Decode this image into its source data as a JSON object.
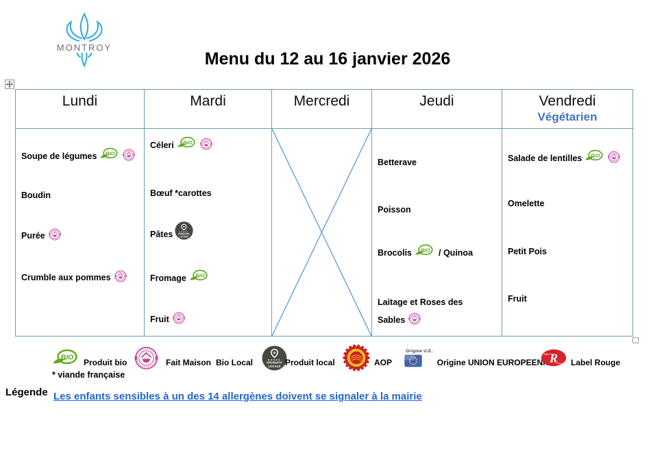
{
  "logo": {
    "text": "MONTROY"
  },
  "title": "Menu du 12 au 16 janvier 2026",
  "table": {
    "days": [
      {
        "label": "Lundi",
        "sublabel": "",
        "crossed": false,
        "items": [
          {
            "text": "Soupe de légumes",
            "icons": [
              "bio",
              "fait-maison"
            ],
            "suffix": ""
          },
          {
            "text": "Boudin",
            "icons": [],
            "suffix": ""
          },
          {
            "text": "Purée",
            "icons": [
              "fait-maison"
            ],
            "suffix": ""
          },
          {
            "text": "Crumble aux pommes",
            "icons": [
              "fait-maison"
            ],
            "suffix": ""
          }
        ]
      },
      {
        "label": "Mardi",
        "sublabel": "",
        "crossed": false,
        "items": [
          {
            "text": "Céleri",
            "icons": [
              "bio",
              "fait-maison"
            ],
            "suffix": ""
          },
          {
            "text": "Bœuf *carottes",
            "icons": [],
            "suffix": ""
          },
          {
            "text": "Pâtes",
            "icons": [
              "produit-local"
            ],
            "suffix": ""
          },
          {
            "text": "Fromage",
            "icons": [
              "bio"
            ],
            "suffix": ""
          },
          {
            "text": "Fruit",
            "icons": [
              "fait-maison"
            ],
            "suffix": ""
          }
        ]
      },
      {
        "label": "Mercredi",
        "sublabel": "",
        "crossed": true,
        "items": []
      },
      {
        "label": "Jeudi",
        "sublabel": "",
        "crossed": false,
        "items": [
          {
            "text": "Betterave",
            "icons": [],
            "suffix": ""
          },
          {
            "text": "Poisson",
            "icons": [],
            "suffix": ""
          },
          {
            "text": "Brocolis",
            "icons": [
              "bio"
            ],
            "suffix": "/ Quinoa"
          },
          {
            "text": "Laitage et Roses des Sables",
            "icons": [
              "fait-maison"
            ],
            "suffix": ""
          }
        ]
      },
      {
        "label": "Vendredi",
        "sublabel": "Végétarien",
        "crossed": false,
        "items": [
          {
            "text": "Salade de lentilles",
            "icons": [
              "bio",
              "fait-maison"
            ],
            "suffix": ""
          },
          {
            "text": "Omelette",
            "icons": [],
            "suffix": ""
          },
          {
            "text": "Petit Pois",
            "icons": [],
            "suffix": ""
          },
          {
            "text": "Fruit",
            "icons": [],
            "suffix": ""
          }
        ]
      }
    ]
  },
  "legend": {
    "entries": [
      {
        "icon": "bio",
        "label": "Produit bio"
      },
      {
        "icon": "fait-maison",
        "label": "Fait Maison"
      },
      {
        "icon": "",
        "label": "Bio Local"
      },
      {
        "icon": "produit-local",
        "label": "Produit local"
      },
      {
        "icon": "aop",
        "label": "AOP"
      },
      {
        "icon": "origine-ue",
        "icon_caption": "Origine U.E.",
        "label": "Origine UNION EUROPEENNE"
      },
      {
        "icon": "label-rouge",
        "label": "Label Rouge"
      }
    ],
    "note_viande": "* viande française",
    "legende_label": "Légende",
    "allergen_notice": "Les enfants sensibles à un des 14 allergènes doivent se signaler à la mairie"
  },
  "icon_names": {
    "bio": "bio-icon",
    "fait-maison": "fait-maison-icon",
    "produit-local": "produit-local-icon",
    "aop": "aop-icon",
    "origine-ue": "eu-flag-icon",
    "label-rouge": "label-rouge-icon"
  },
  "colors": {
    "table_border": "#6A9ABA",
    "cross": "#5B9BD5",
    "vegetarien": "#4472C4",
    "allergen_text": "#1B66DB",
    "logo_blue": "#29ABE2",
    "logo_text": "#6d6e71",
    "bio_green": "#5FA91F",
    "fait_maison_pink": "#C13F9B",
    "produit_local_dark": "#474940",
    "aop_red": "#D0202A",
    "aop_yellow": "#F3C117",
    "label_rouge_red": "#D8232A",
    "eu_blue": "#3F63B5",
    "eu_star": "#FFD617"
  }
}
